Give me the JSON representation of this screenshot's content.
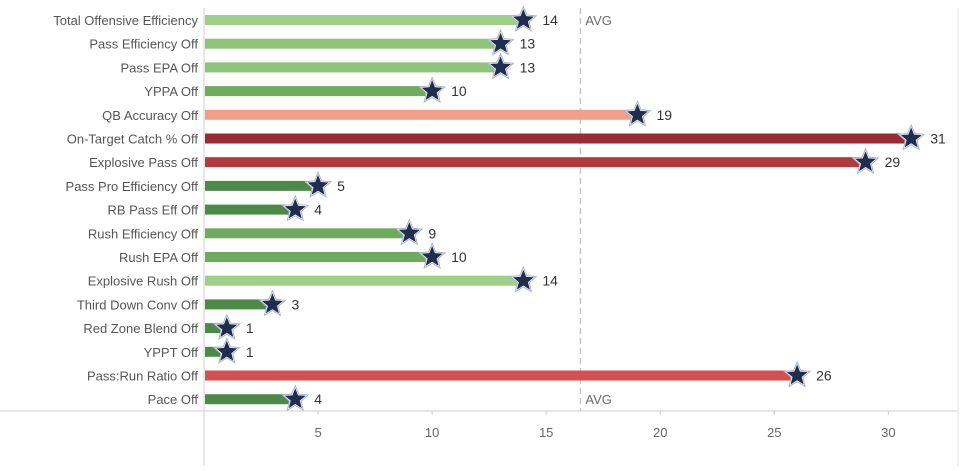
{
  "chart_data": {
    "type": "bar",
    "orientation": "horizontal",
    "categories": [
      "Total Offensive Efficiency",
      "Pass Efficiency Off",
      "Pass EPA Off",
      "YPPA Off",
      "QB Accuracy Off",
      "On-Target Catch % Off",
      "Explosive Pass Off",
      "Pass Pro Efficiency Off",
      "RB Pass Eff Off",
      "Rush Efficiency Off",
      "Rush EPA Off",
      "Explosive Rush Off",
      "Third Down Conv Off",
      "Red Zone Blend Off",
      "YPPT Off",
      "Pass:Run Ratio Off",
      "Pace Off"
    ],
    "values": [
      14,
      13,
      13,
      10,
      19,
      31,
      29,
      5,
      4,
      9,
      10,
      14,
      3,
      1,
      1,
      26,
      4
    ],
    "colors": [
      "#9fd08a",
      "#8fc47a",
      "#8fc47a",
      "#6fab5e",
      "#f0a08a",
      "#9a2a38",
      "#b23a3f",
      "#4e8a47",
      "#4e8a47",
      "#6fab5e",
      "#6fab5e",
      "#9fd08a",
      "#4e8a47",
      "#4e8a47",
      "#4e8a47",
      "#d64f4f",
      "#4e8a47"
    ],
    "marker": "star",
    "marker_color": "#1f2d4e",
    "avg_line": {
      "value": 16.5,
      "label": "AVG"
    },
    "xlim": [
      0,
      33
    ],
    "xticks": [
      5,
      10,
      15,
      20,
      25,
      30
    ],
    "title": "",
    "xlabel": "",
    "ylabel": ""
  }
}
